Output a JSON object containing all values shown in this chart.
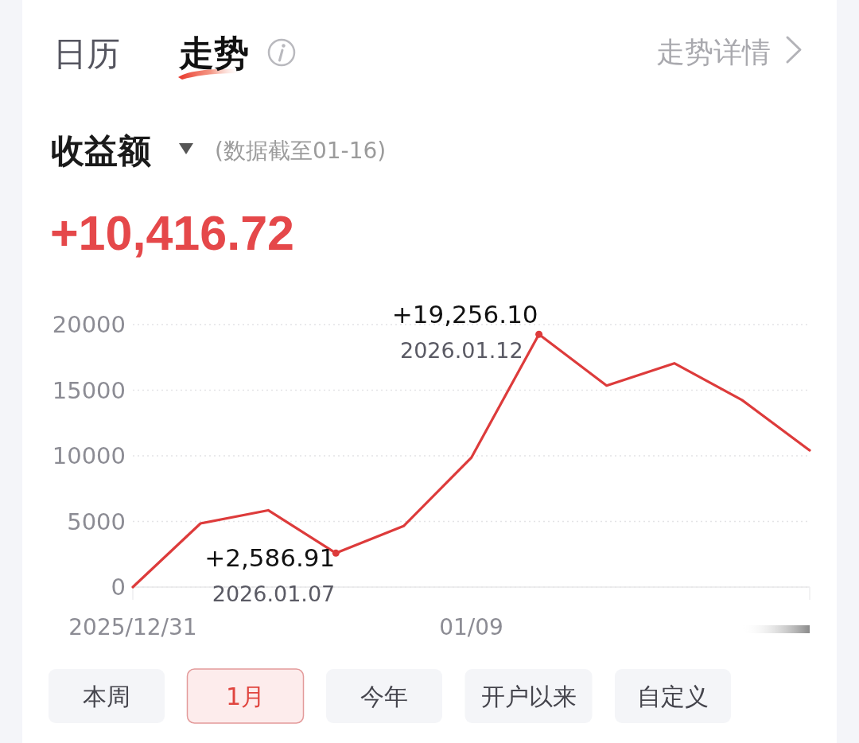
{
  "chart_data": {
    "type": "line",
    "title": "收益额",
    "subtitle": "(数据截至01-16)",
    "categories": [
      "2025/12/31",
      null,
      null,
      null,
      null,
      "01/09",
      null,
      null,
      null,
      null,
      null
    ],
    "values": [
      0,
      4850,
      5850,
      2586.91,
      4650,
      9850,
      19256.1,
      15350,
      17050,
      14250,
      10416.72
    ],
    "color": "#dd3b3b",
    "ylim": [
      0,
      20000
    ],
    "yticks": [
      0,
      5000,
      10000,
      15000,
      20000
    ],
    "grid": "y",
    "line_style": "solid",
    "annotations": [
      "日历",
      "走势",
      "走势详情",
      "+10,416.72",
      "+19,256.10",
      "2026.01.12",
      "+2,586.91",
      "2026.01.07",
      "本周",
      "1月",
      "今年",
      "开户以来",
      "自定义"
    ]
  }
}
